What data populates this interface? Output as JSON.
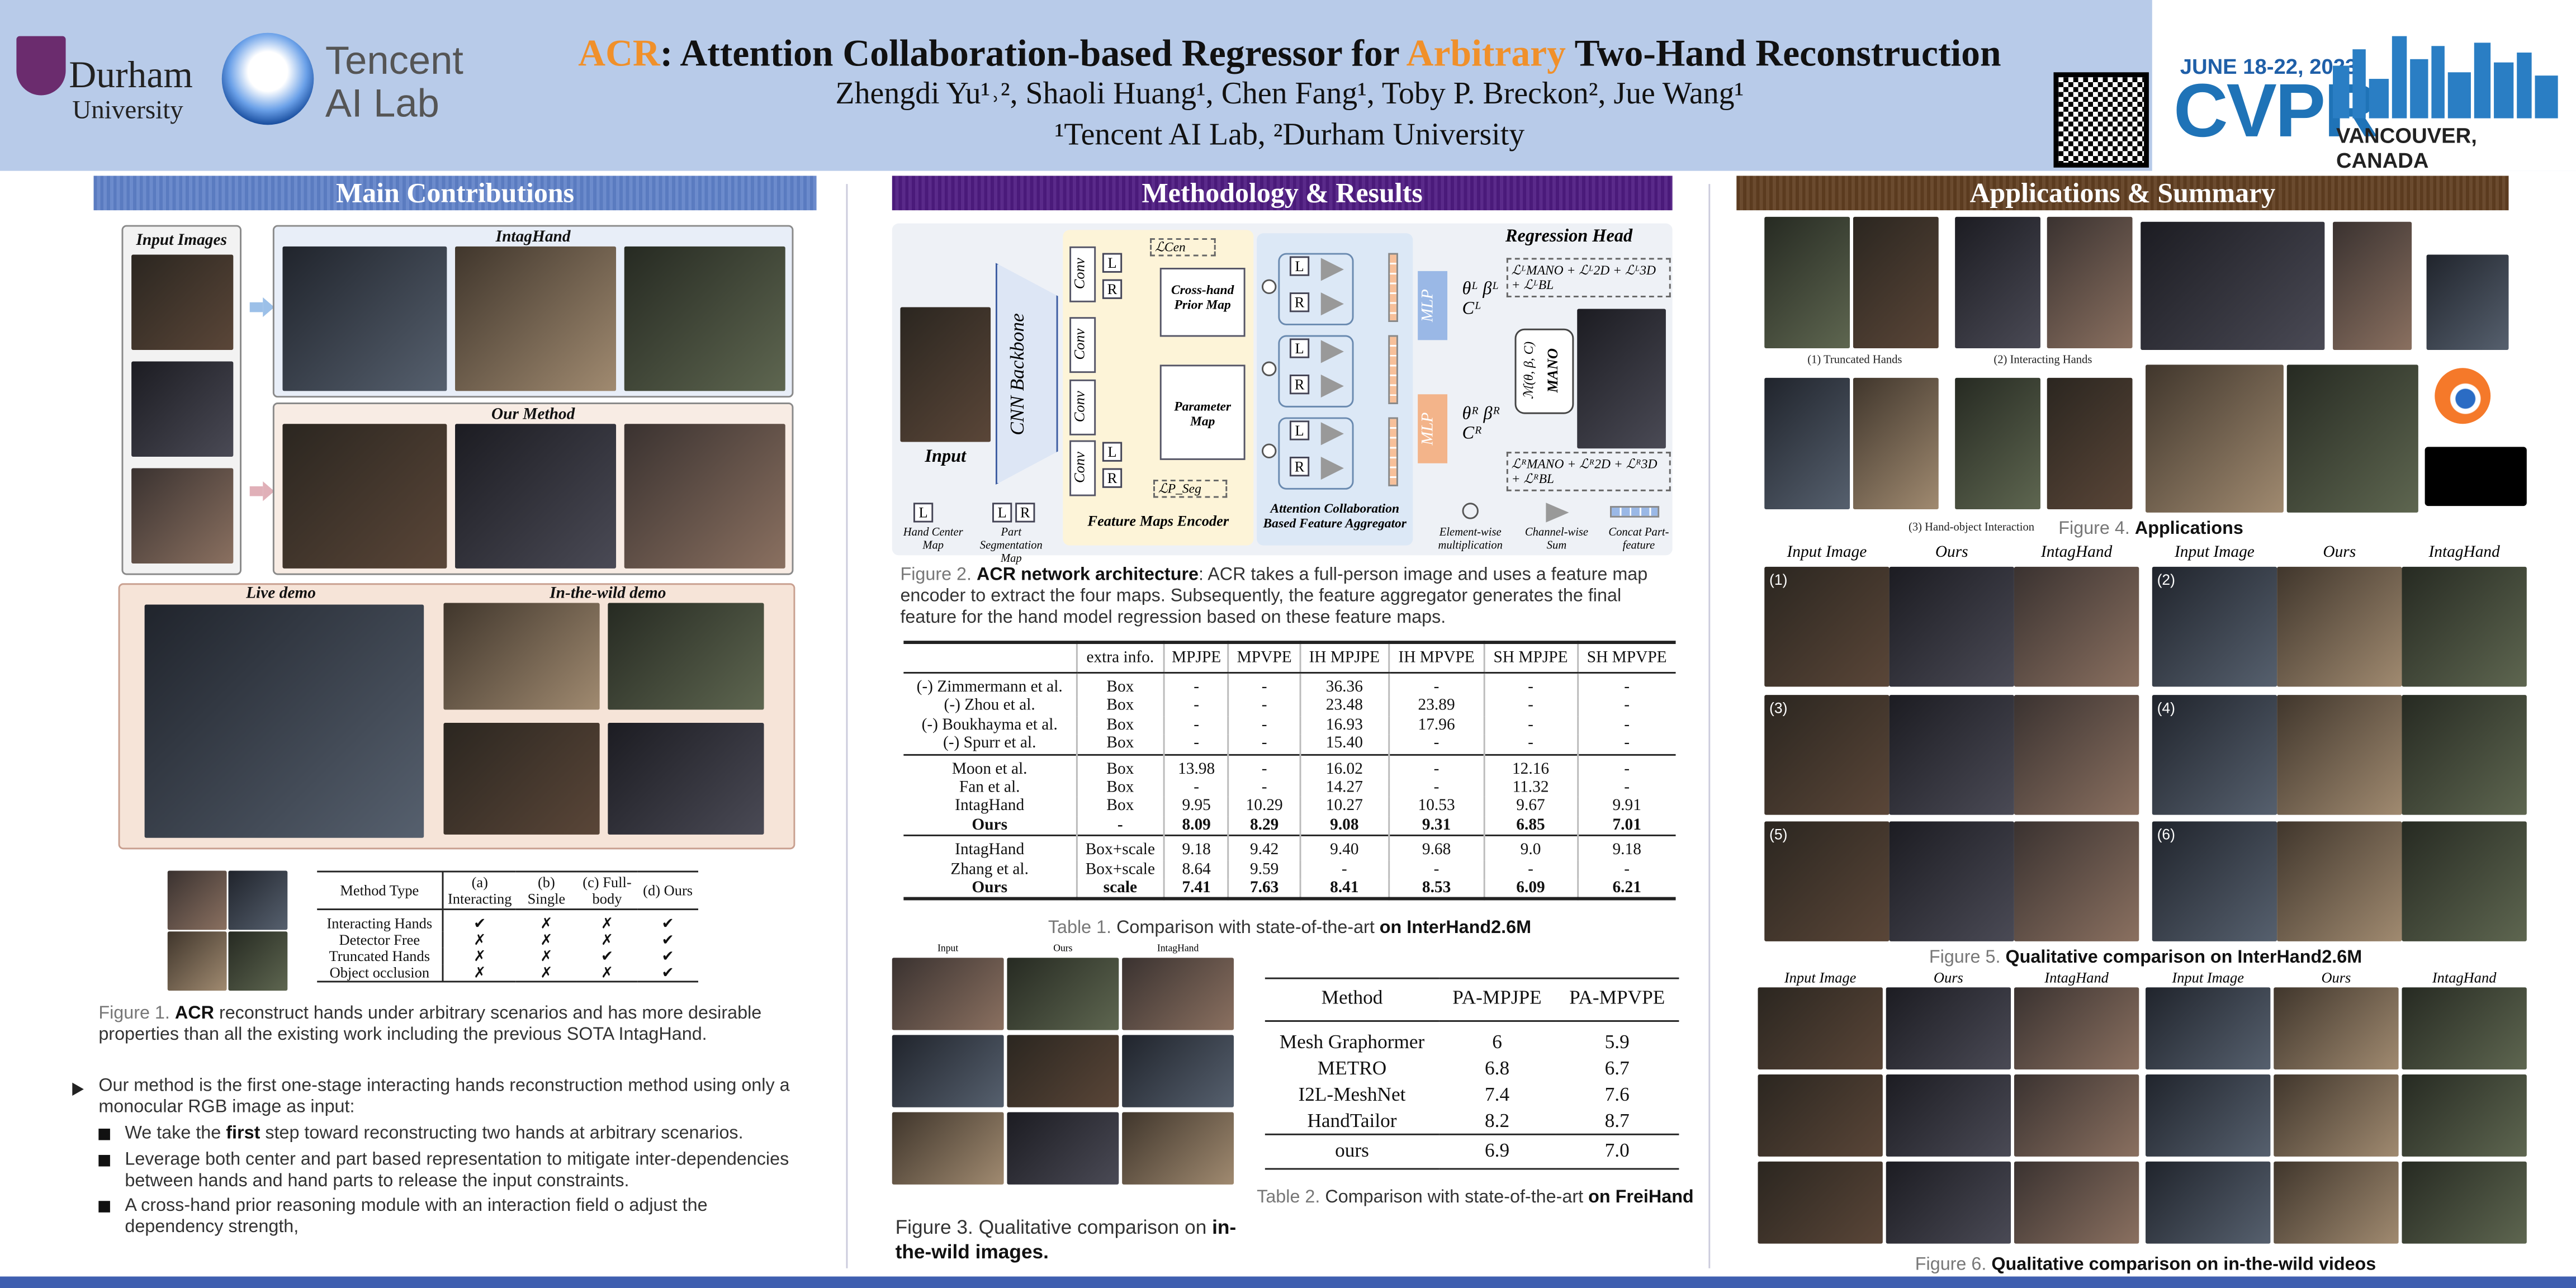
{
  "header": {
    "title": {
      "acr": "ACR",
      "part1": ":  Attention Collaboration-based Regressor for ",
      "arbitrary": "Arbitrary",
      "part2": " Two-Hand Reconstruction"
    },
    "authors": "Zhengdi Yu¹˒², Shaoli Huang¹, Chen Fang¹, Toby P. Breckon², Jue Wang¹",
    "affiliations": "¹Tencent AI Lab, ²Durham University",
    "logos": {
      "durham": "Durham",
      "durham_sub": "University",
      "tencent": "Tencent",
      "tencent_sub": "AI Lab"
    },
    "conference": {
      "dates": "JUNE 18-22, 2023",
      "name": "CVPR",
      "location": "VANCOUVER, CANADA"
    }
  },
  "left": {
    "heading": "Main Contributions",
    "figure1": {
      "labels": [
        "Input Images",
        "IntagHand",
        "Our Method",
        "Live demo",
        "In-the-wild demo"
      ],
      "table": {
        "header": [
          "Method Type",
          "(a) Interacting",
          "(b) Single",
          "(c) Full-body",
          "(d) Ours"
        ],
        "rows": [
          [
            "Interacting Hands",
            "✔",
            "✗",
            "✗",
            "✔"
          ],
          [
            "Detector Free",
            "✗",
            "✗",
            "✗",
            "✔"
          ],
          [
            "Truncated Hands",
            "✗",
            "✗",
            "✔",
            "✔"
          ],
          [
            "Object occlusion",
            "✗",
            "✗",
            "✗",
            "✔"
          ]
        ]
      },
      "caption": {
        "label": "Figure 1. ",
        "bold": "ACR",
        "text": " reconstruct hands under arbitrary scenarios and has more desirable properties than all the existing work including the previous SOTA IntagHand."
      }
    },
    "bullets": {
      "main": "Our method is the first one-stage interacting hands reconstruction method using only a monocular RGB image as input:",
      "items": [
        [
          "We take the ",
          "first",
          " step toward reconstructing two hands at arbitrary scenarios."
        ],
        [
          "Leverage both center and part based representation to mitigate inter-dependencies between hands and hand parts to release the input constraints."
        ],
        [
          "A cross-hand prior reasoning module with an interaction field o adjust the dependency strength,"
        ]
      ]
    }
  },
  "middle": {
    "heading": "Methodology & Results",
    "figure2": {
      "labels": {
        "input": "Input",
        "backbone": "CNN Backbone",
        "conv": "Conv",
        "left": "L",
        "right": "R",
        "cross_hand": "Cross-hand Prior Map",
        "parameter": "Parameter Map",
        "encoder": "Feature Maps Encoder",
        "aggregator": "Attention Collaboration Based Feature Aggregator",
        "regression_head": "Regression Head",
        "mlp": "MLP",
        "mano": "MANO",
        "mano_fn": "ℳ(θ, β, C)",
        "head_left": "θᴸ βᴸ Cᴸ",
        "head_right": "θᴿ βᴿ Cᴿ",
        "loss_left": "ℒᴸMANO + ℒᴸ2D + ℒᴸ3D + ℒᴸBL",
        "loss_right": "ℒᴿMANO + ℒᴿ2D + ℒᴿ3D + ℒᴿBL",
        "loss_cen": "ℒCen",
        "loss_seg": "ℒP_Seg",
        "legend": [
          "Hand Center Map",
          "Part Segmentation Map",
          "Element-wise multiplication",
          "Channel-wise Sum",
          "Concat Part-feature"
        ]
      },
      "caption": {
        "label": "Figure 2. ",
        "bold": "ACR network architecture",
        "text": ": ACR takes a full-person image and uses a feature map encoder to extract the four maps. Subsequently, the feature aggregator generates the final feature for the hand model regression based on these feature maps."
      }
    },
    "table1": {
      "header": [
        "",
        "extra info.",
        "MPJPE",
        "MPVPE",
        "IH MPJPE",
        "IH MPVPE",
        "SH MPJPE",
        "SH MPVPE"
      ],
      "groups": [
        [
          {
            "cells": [
              "(-) Zimmermann et al.",
              "Box",
              "-",
              "-",
              "36.36",
              "-",
              "-",
              "-"
            ],
            "bold": false
          },
          {
            "cells": [
              "(-) Zhou et al.",
              "Box",
              "-",
              "-",
              "23.48",
              "23.89",
              "-",
              "-"
            ],
            "bold": false
          },
          {
            "cells": [
              "(-) Boukhayma et al.",
              "Box",
              "-",
              "-",
              "16.93",
              "17.96",
              "-",
              "-"
            ],
            "bold": false
          },
          {
            "cells": [
              "(-) Spurr et al.",
              "Box",
              "-",
              "-",
              "15.40",
              "-",
              "-",
              "-"
            ],
            "bold": false
          }
        ],
        [
          {
            "cells": [
              "Moon et al.",
              "Box",
              "13.98",
              "-",
              "16.02",
              "-",
              "12.16",
              "-"
            ],
            "bold": false
          },
          {
            "cells": [
              "Fan et al.",
              "Box",
              "-",
              "-",
              "14.27",
              "-",
              "11.32",
              "-"
            ],
            "bold": false
          },
          {
            "cells": [
              "IntagHand",
              "Box",
              "9.95",
              "10.29",
              "10.27",
              "10.53",
              "9.67",
              "9.91"
            ],
            "bold": false
          },
          {
            "cells": [
              "Ours",
              "-",
              "8.09",
              "8.29",
              "9.08",
              "9.31",
              "6.85",
              "7.01"
            ],
            "bold": true
          }
        ],
        [
          {
            "cells": [
              "IntagHand",
              "Box+scale",
              "9.18",
              "9.42",
              "9.40",
              "9.68",
              "9.0",
              "9.18"
            ],
            "bold": false
          },
          {
            "cells": [
              "Zhang et al.",
              "Box+scale",
              "8.64",
              "9.59",
              "-",
              "-",
              "-",
              "-"
            ],
            "bold": false
          },
          {
            "cells": [
              "Ours",
              "scale",
              "7.41",
              "7.63",
              "8.41",
              "8.53",
              "6.09",
              "6.21"
            ],
            "bold": true
          }
        ]
      ],
      "caption": {
        "label": "Table 1. ",
        "text": "Comparison with state-of-the-art ",
        "bold": "on InterHand2.6M"
      }
    },
    "figure3": {
      "labels": [
        "Input",
        "Ours",
        "IntagHand"
      ],
      "caption": {
        "text": "Figure 3. Qualitative comparison on ",
        "bold": "in-the-wild images."
      }
    },
    "table2": {
      "header": [
        "Method",
        "PA-MPJPE",
        "PA-MPVPE"
      ],
      "rows": [
        [
          "Mesh Graphormer",
          "6",
          "5.9"
        ],
        [
          "METRO",
          "6.8",
          "6.7"
        ],
        [
          "I2L-MeshNet",
          "7.4",
          "7.6"
        ],
        [
          "HandTailor",
          "8.2",
          "8.7"
        ],
        [
          "ours",
          "6.9",
          "7.0"
        ]
      ],
      "caption": {
        "label": "Table 2. ",
        "text": "Comparison with state-of-the-art ",
        "bold": "on FreiHand"
      }
    }
  },
  "right": {
    "heading": "Applications & Summary",
    "figure4": {
      "labels": [
        "(1) Truncated Hands",
        "(2) Interacting Hands",
        "(3) Hand-object Interaction"
      ],
      "caption": {
        "label": "Figure 4. ",
        "bold": "Applications"
      }
    },
    "figure5": {
      "columns": [
        "Input Image",
        "Ours",
        "IntagHand",
        "Input Image",
        "Ours",
        "IntagHand"
      ],
      "panels": [
        "(1)",
        "(2)",
        "(3)",
        "(4)",
        "(5)",
        "(6)"
      ],
      "caption": {
        "label": "Figure 5. ",
        "bold": "Qualitative comparison on InterHand2.6M"
      }
    },
    "figure6": {
      "columns": [
        "Input Image",
        "Ours",
        "IntagHand",
        "Input Image",
        "Ours",
        "IntagHand"
      ],
      "caption": {
        "label": "Figure 6. ",
        "bold": "Qualitative comparison on in-the-wild videos"
      }
    }
  }
}
